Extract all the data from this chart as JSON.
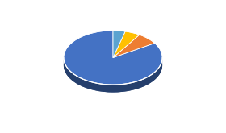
{
  "slices": [
    84,
    7,
    5,
    4
  ],
  "colors": [
    "#4472C4",
    "#ED7D31",
    "#FFC000",
    "#5BA3D0"
  ],
  "startangle": 90,
  "background_color": "#ffffff",
  "figsize": [
    2.8,
    1.65
  ],
  "dpi": 100,
  "depth_color": "#1F3A6E",
  "side_darkness": 0.55,
  "ellipse_yscale": 0.55
}
